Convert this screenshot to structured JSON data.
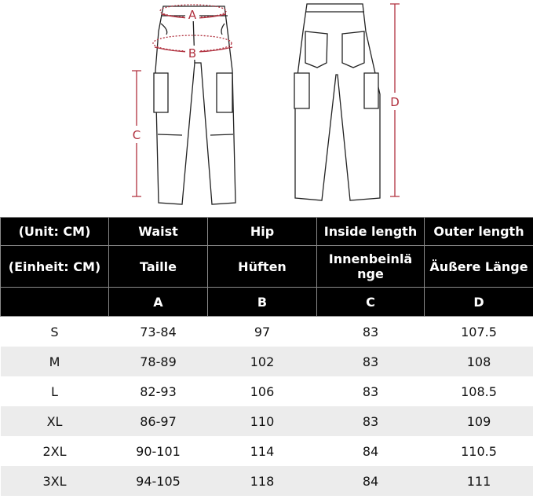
{
  "figure": {
    "labels": {
      "waist": "A",
      "hip": "B",
      "inside": "C",
      "outer": "D"
    },
    "accent_color": "#b0303e"
  },
  "table": {
    "header_rows": [
      [
        "(Unit: CM)",
        "Waist",
        "Hip",
        "Inside length",
        "Outer length"
      ],
      [
        "(Einheit: CM)",
        "Taille",
        "Hüften",
        "Innenbeinlä nge",
        "Äußere Länge"
      ],
      [
        "",
        "A",
        "B",
        "C",
        "D"
      ]
    ],
    "rows": [
      [
        "S",
        "73-84",
        "97",
        "83",
        "107.5"
      ],
      [
        "M",
        "78-89",
        "102",
        "83",
        "108"
      ],
      [
        "L",
        "82-93",
        "106",
        "83",
        "108.5"
      ],
      [
        "XL",
        "86-97",
        "110",
        "83",
        "109"
      ],
      [
        "2XL",
        "90-101",
        "114",
        "84",
        "110.5"
      ],
      [
        "3XL",
        "94-105",
        "118",
        "84",
        "111"
      ]
    ]
  }
}
